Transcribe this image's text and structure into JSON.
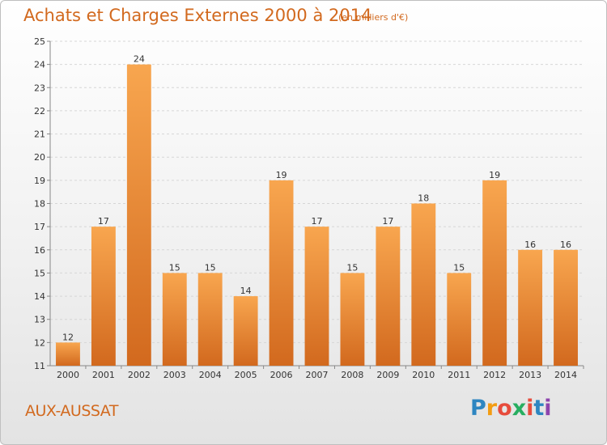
{
  "title": "Achats et Charges Externes 2000 à 2014",
  "subtitle": "(en milliers d'€)",
  "place": "AUX-AUSSAT",
  "logo": {
    "letters": [
      "P",
      "r",
      "o",
      "x",
      "i",
      "t",
      "i"
    ],
    "colors": [
      "#2e86c1",
      "#f39c12",
      "#e74c3c",
      "#27ae60",
      "#e74c3c",
      "#2e86c1",
      "#8e44ad"
    ]
  },
  "colors": {
    "bar_top": "#f8a64f",
    "bar_bottom": "#d2691e",
    "accent": "#d2691e"
  },
  "chart_data": {
    "type": "bar",
    "title": "Achats et Charges Externes 2000 à 2014",
    "subtitle": "(en milliers d'€)",
    "categories": [
      "2000",
      "2001",
      "2002",
      "2003",
      "2004",
      "2005",
      "2006",
      "2007",
      "2008",
      "2009",
      "2010",
      "2011",
      "2012",
      "2013",
      "2014"
    ],
    "values": [
      12,
      17,
      24,
      15,
      15,
      14,
      19,
      17,
      15,
      17,
      18,
      15,
      19,
      16,
      16
    ],
    "ylim": [
      11,
      25
    ],
    "yticks": [
      11,
      12,
      13,
      14,
      15,
      16,
      17,
      18,
      19,
      20,
      21,
      22,
      23,
      24,
      25
    ],
    "grid": true,
    "xlabel": "",
    "ylabel": ""
  }
}
